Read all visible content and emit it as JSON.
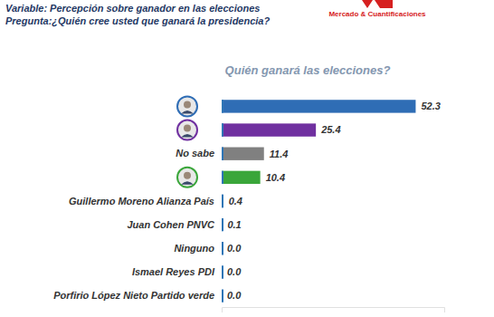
{
  "chart_data": {
    "type": "bar",
    "orientation": "horizontal",
    "title": "Quién ganará las elecciones?",
    "annotations": [
      "Variable: Percepción sobre ganador en las elecciones",
      "Pregunta:¿Quién cree usted que ganará la presidencia?",
      "Mercado & Cuantificaciones"
    ],
    "categories": [
      null,
      null,
      "No sabe",
      null,
      "Guillermo Moreno Alianza País",
      "Juan Cohen PNVC",
      "Ninguno",
      "Ismael Reyes PDI",
      "Porfirio López Nieto Partido verde"
    ],
    "values": [
      52.3,
      25.4,
      11.4,
      10.4,
      0.4,
      0.1,
      0.0,
      0.0,
      0.0
    ],
    "value_labels": [
      "52.3",
      "25.4",
      "11.4",
      "10.4",
      "0.4",
      "0.1",
      "0.0",
      "0.0",
      "0.0"
    ],
    "colors": [
      "#2f6db5",
      "#7030a0",
      "#808080",
      "#3aa63a",
      "#2e75b6",
      "#2e75b6",
      "#2e75b6",
      "#2e75b6",
      "#2e75b6"
    ],
    "xlim": [
      0,
      60
    ],
    "xticks": [],
    "tick_labels": false,
    "data_labels": true,
    "grid": false
  }
}
